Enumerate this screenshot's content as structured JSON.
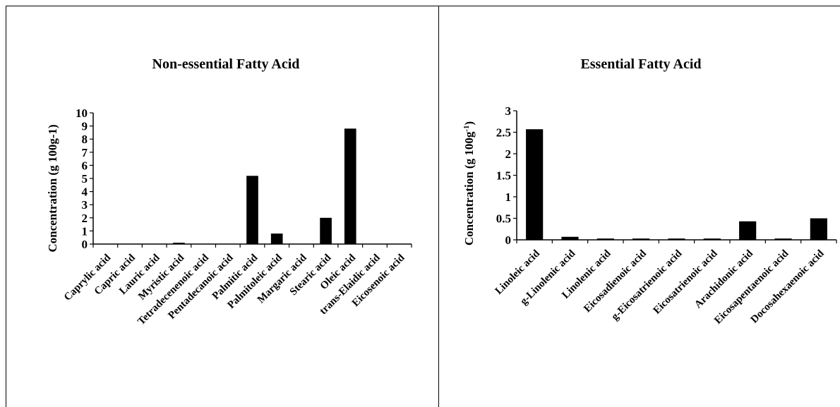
{
  "chart_data": [
    {
      "type": "bar",
      "title": "Non-essential Fatty Acid",
      "ylabel": "Concentration (g 100g-1)",
      "xlabel": "",
      "ylim": [
        0,
        10
      ],
      "yticks": [
        "0",
        "1",
        "2",
        "3",
        "4",
        "5",
        "6",
        "7",
        "8",
        "9",
        "10"
      ],
      "grid": false,
      "categories": [
        "Caprylic acid",
        "Capric acid",
        "Lauric acid",
        "Myristic acid",
        "Tetradecenenoic acid",
        "Pentadecanoic acid",
        "Palmitic acid",
        "Palmitoleic acid",
        "Margaric acid",
        "Stearic acid",
        "Oleic acid",
        "trans-Elaidic acid",
        "Eicosenoic acid"
      ],
      "values": [
        0,
        0,
        0,
        0.1,
        0,
        0,
        5.2,
        0.8,
        0,
        2.0,
        8.8,
        0,
        0
      ],
      "bar_color": "#000000"
    },
    {
      "type": "bar",
      "title": "Essential Fatty Acid",
      "ylabel": "Concentration (g 100g",
      "ylabel_sup": "-1",
      "ylabel_end": ")",
      "xlabel": "",
      "ylim": [
        0,
        3
      ],
      "yticks": [
        "0",
        "0.5",
        "1",
        "1.5",
        "2",
        "2.5",
        "3"
      ],
      "grid": false,
      "categories": [
        "Linoleic acid",
        "g-Linolenic acid",
        "Linolenic acid",
        "Eicosadienoic acid",
        "g-Eicosatrienoic acid",
        "Eicosatrienoic acid",
        "Arachidonic acid",
        "Eicosapentaenoic acid",
        "Docosahexaenoic acid"
      ],
      "values": [
        2.57,
        0.07,
        0.03,
        0.03,
        0.03,
        0.03,
        0.43,
        0.03,
        0.5
      ],
      "bar_color": "#000000"
    }
  ]
}
